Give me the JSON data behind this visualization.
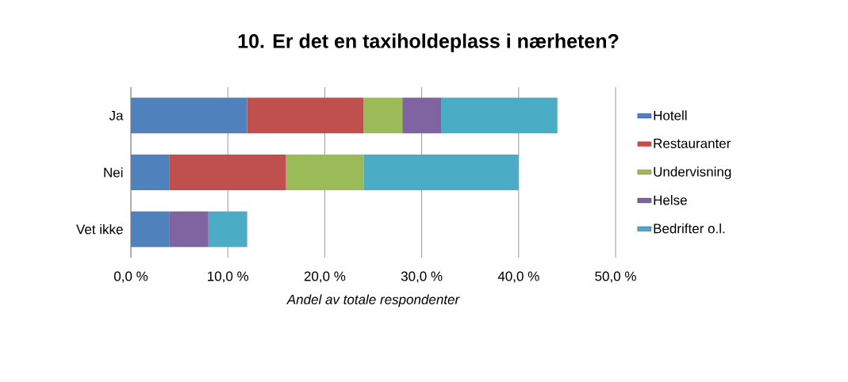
{
  "chart_data": {
    "type": "bar",
    "orientation": "horizontal",
    "stacked": true,
    "title": "10. Er det en taxiholdeplass i nærheten?",
    "xlabel": "Andel av totale respondenter",
    "categories": [
      "Ja",
      "Nei",
      "Vet ikke"
    ],
    "series": [
      {
        "name": "Hotell",
        "color": "#4f81bd",
        "values": [
          12,
          4,
          4
        ]
      },
      {
        "name": "Restauranter",
        "color": "#c0504d",
        "values": [
          12,
          12,
          0
        ]
      },
      {
        "name": "Undervisning",
        "color": "#9bbb59",
        "values": [
          4,
          8,
          0
        ]
      },
      {
        "name": "Helse",
        "color": "#8064a2",
        "values": [
          4,
          0,
          4
        ]
      },
      {
        "name": "Bedrifter o.l.",
        "color": "#4bacc6",
        "values": [
          12,
          16,
          4
        ]
      }
    ],
    "xlim": [
      0,
      50
    ],
    "xticks": [
      {
        "value": 0,
        "label": "0,0 %"
      },
      {
        "value": 10,
        "label": "10,0 %"
      },
      {
        "value": 20,
        "label": "20,0 %"
      },
      {
        "value": 30,
        "label": "30,0 %"
      },
      {
        "value": 40,
        "label": "40,0 %"
      },
      {
        "value": 50,
        "label": "50,0 %"
      }
    ],
    "grid": "x",
    "legend": "right"
  }
}
